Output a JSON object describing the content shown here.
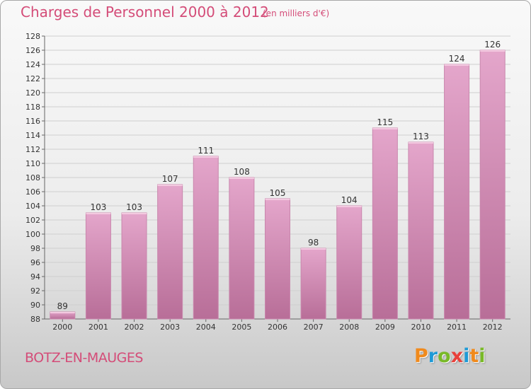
{
  "title": "Charges de Personnel 2000 à 2012",
  "subtitle": "(en milliers d'€)",
  "commune": "BOTZ-EN-MAUGES",
  "logo": {
    "letters": [
      "P",
      "r",
      "o",
      "x",
      "i",
      "t",
      "i"
    ],
    "colors": [
      "#f08a1c",
      "#1f9ad6",
      "#79b928",
      "#e8403a",
      "#1f9ad6",
      "#f08a1c",
      "#79b928"
    ]
  },
  "colors": {
    "title": "#d44c78",
    "bar_top": "#e4a6cb",
    "bar_bottom": "#b86e98"
  },
  "chart_data": {
    "type": "bar",
    "title": "Charges de Personnel 2000 à 2012",
    "subtitle": "(en milliers d'€)",
    "categories": [
      "2000",
      "2001",
      "2002",
      "2003",
      "2004",
      "2005",
      "2006",
      "2007",
      "2008",
      "2009",
      "2010",
      "2011",
      "2012"
    ],
    "values": [
      89,
      103,
      103,
      107,
      111,
      108,
      105,
      98,
      104,
      115,
      113,
      124,
      126
    ],
    "ylim": [
      88,
      128
    ],
    "yticks": [
      88,
      90,
      92,
      94,
      96,
      98,
      100,
      102,
      104,
      106,
      108,
      110,
      112,
      114,
      116,
      118,
      120,
      122,
      124,
      126,
      128
    ],
    "grid": "horizontal",
    "xlabel": "",
    "ylabel": ""
  }
}
